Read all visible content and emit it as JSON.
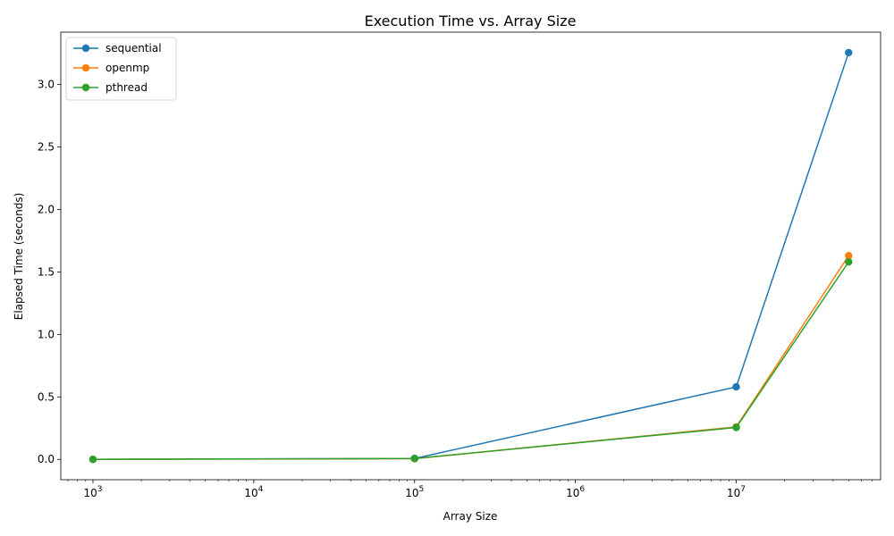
{
  "chart_data": {
    "type": "line",
    "title": "Execution Time vs. Array Size",
    "xlabel": "Array Size",
    "ylabel": "Elapsed Time (seconds)",
    "xscale": "log",
    "x": [
      1000,
      100000,
      10000000,
      50000000
    ],
    "xlim": [
      631,
      79000000
    ],
    "ylim": [
      -0.163,
      3.419
    ],
    "x_ticks": [
      {
        "value": 1000,
        "base": "10",
        "exp": "3"
      },
      {
        "value": 10000,
        "base": "10",
        "exp": "4"
      },
      {
        "value": 100000,
        "base": "10",
        "exp": "5"
      },
      {
        "value": 1000000,
        "base": "10",
        "exp": "6"
      },
      {
        "value": 10000000,
        "base": "10",
        "exp": "7"
      }
    ],
    "y_ticks": [
      {
        "value": 0.0,
        "label": "0.0"
      },
      {
        "value": 0.5,
        "label": "0.5"
      },
      {
        "value": 1.0,
        "label": "1.0"
      },
      {
        "value": 1.5,
        "label": "1.5"
      },
      {
        "value": 2.0,
        "label": "2.0"
      },
      {
        "value": 2.5,
        "label": "2.5"
      },
      {
        "value": 3.0,
        "label": "3.0"
      }
    ],
    "series": [
      {
        "name": "sequential",
        "color": "#1f77b4",
        "values": [
          0.0,
          0.007,
          0.58,
          3.255
        ]
      },
      {
        "name": "openmp",
        "color": "#ff7f0e",
        "values": [
          0.0,
          0.005,
          0.26,
          1.63
        ]
      },
      {
        "name": "pthread",
        "color": "#2ca02c",
        "values": [
          0.0,
          0.007,
          0.255,
          1.58
        ]
      }
    ],
    "legend_position": "upper-left",
    "grid": false
  }
}
